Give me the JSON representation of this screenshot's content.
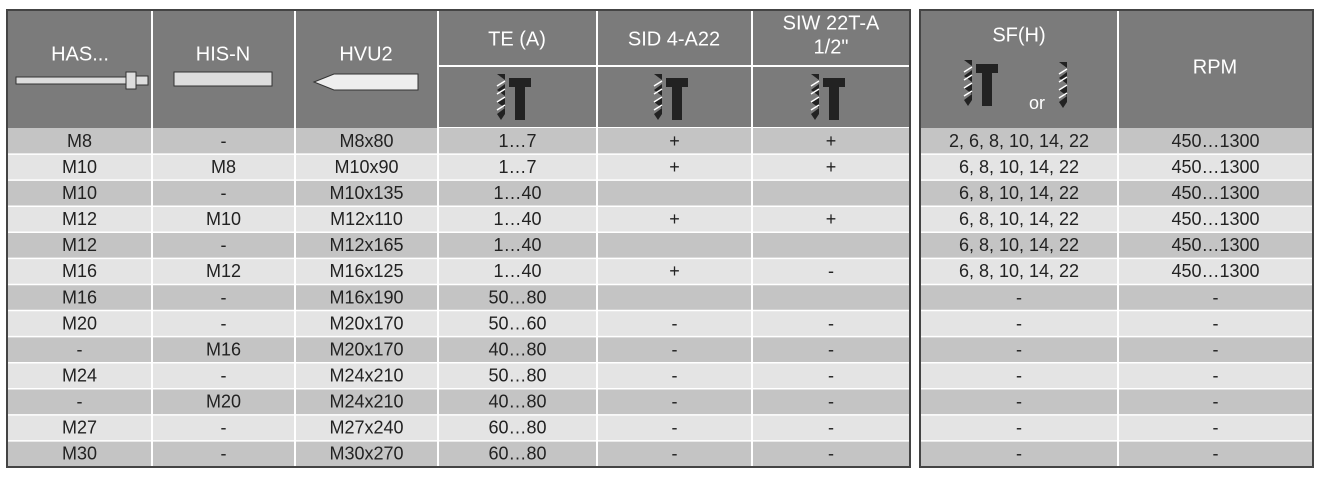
{
  "header": {
    "has": "HAS...",
    "his_n": "HIS-N",
    "hvu2": "HVU2",
    "te": "TE (A)",
    "sid": "SID 4-A22",
    "siw": [
      "SIW 22T-A",
      "1/2\""
    ],
    "sf": "SF(H)",
    "or": "or",
    "rpm": "RPM"
  },
  "table": {
    "rows": [
      [
        "M8",
        "-",
        "M8x80",
        "1…7",
        "+",
        "+",
        "2, 6, 8, 10, 14, 22",
        "450…1300"
      ],
      [
        "M10",
        "M8",
        "M10x90",
        "1…7",
        "+",
        "+",
        "6, 8, 10, 14, 22",
        "450…1300"
      ],
      [
        "M10",
        "-",
        "M10x135",
        "1…40",
        null,
        null,
        "6, 8, 10, 14, 22",
        "450…1300"
      ],
      [
        "M12",
        "M10",
        "M12x110",
        "1…40",
        "+",
        "+",
        "6, 8, 10, 14, 22",
        "450…1300"
      ],
      [
        "M12",
        "-",
        "M12x165",
        "1…40",
        null,
        null,
        "6, 8, 10, 14, 22",
        "450…1300"
      ],
      [
        "M16",
        "M12",
        "M16x125",
        "1…40",
        "+",
        "-",
        "6, 8, 10, 14, 22",
        "450…1300"
      ],
      [
        "M16",
        "-",
        "M16x190",
        "50…80",
        null,
        null,
        "-",
        "-"
      ],
      [
        "M20",
        "-",
        "M20x170",
        "50…60",
        "-",
        "-",
        "-",
        "-"
      ],
      [
        "-",
        "M16",
        "M20x170",
        "40…80",
        "-",
        "-",
        "-",
        "-"
      ],
      [
        "M24",
        "-",
        "M24x210",
        "50…80",
        "-",
        "-",
        "-",
        "-"
      ],
      [
        "-",
        "M20",
        "M24x210",
        "40…80",
        "-",
        "-",
        "-",
        "-"
      ],
      [
        "M27",
        "-",
        "M27x240",
        "60…80",
        "-",
        "-",
        "-",
        "-"
      ],
      [
        "M30",
        "-",
        "M30x270",
        "60…80",
        "-",
        "-",
        "-",
        "-"
      ]
    ]
  }
}
